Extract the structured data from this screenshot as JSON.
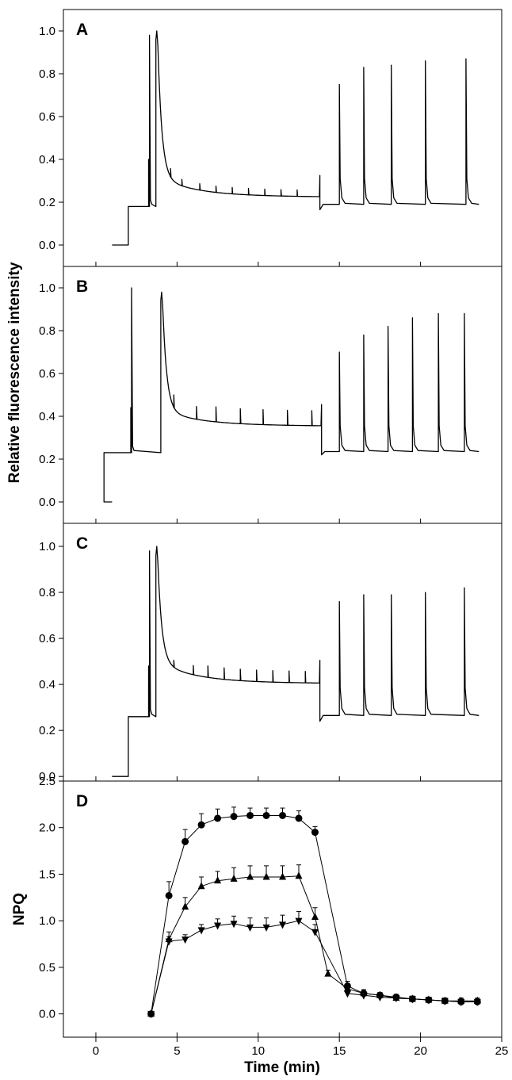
{
  "figure": {
    "ylabel_shared": "Relative fluorescence intensity",
    "xlabel": "Time (min)",
    "xlim": [
      -2,
      25
    ],
    "xticks": [
      0,
      5,
      10,
      15,
      20,
      25
    ],
    "xtick_labels": [
      "0",
      "5",
      "10",
      "15",
      "20",
      "25"
    ]
  },
  "chart_data": [
    {
      "type": "line",
      "panel": "A",
      "ylim": [
        -0.1,
        1.1
      ],
      "yticks": [
        0.0,
        0.2,
        0.4,
        0.6,
        0.8,
        1.0
      ],
      "ytick_labels": [
        "0.0",
        "0.2",
        "0.4",
        "0.6",
        "0.8",
        "1.0"
      ],
      "baseline": 0.0,
      "fo_on": 2.0,
      "fo": 0.18,
      "sp1": 3.3,
      "sp1_peak": 0.98,
      "sp1_small": 0.4,
      "al_on": 3.7,
      "al_peak": 1.0,
      "al_mid": 0.32,
      "steady": 0.23,
      "al_end": 0.225,
      "al_off": 13.8,
      "dark": 0.19,
      "dark_dip": 0.165,
      "sat_pulses_light": [
        4.6,
        5.3,
        6.4,
        7.4,
        8.4,
        9.4,
        10.4,
        11.4,
        12.4
      ],
      "sat_pulse_light_heights": [
        0.04,
        0.03,
        0.03,
        0.03,
        0.03,
        0.03,
        0.03,
        0.03,
        0.03
      ],
      "sat_pulses_dark": [
        15.0,
        16.5,
        18.2,
        20.3,
        22.8
      ],
      "sat_pulse_dark_peaks": [
        0.75,
        0.83,
        0.84,
        0.86,
        0.87
      ],
      "end_time": 23.6
    },
    {
      "type": "line",
      "panel": "B",
      "ylim": [
        -0.1,
        1.1
      ],
      "yticks": [
        0.0,
        0.2,
        0.4,
        0.6,
        0.8,
        1.0
      ],
      "ytick_labels": [
        "0.0",
        "0.2",
        "0.4",
        "0.6",
        "0.8",
        "1.0"
      ],
      "baseline": 0.0,
      "fo_on": 0.5,
      "fo": 0.23,
      "sp1": 2.2,
      "sp1_peak": 1.0,
      "sp1_small": 0.44,
      "al_on": 4.0,
      "al_peak": 0.98,
      "al_mid": 0.43,
      "steady": 0.36,
      "al_end": 0.355,
      "al_off": 13.9,
      "dark": 0.235,
      "dark_dip": 0.22,
      "sat_pulses_light": [
        4.8,
        6.2,
        7.4,
        8.9,
        10.3,
        11.8,
        13.3
      ],
      "sat_pulse_light_heights": [
        0.06,
        0.06,
        0.07,
        0.07,
        0.07,
        0.07,
        0.07
      ],
      "sat_pulses_dark": [
        15.0,
        16.5,
        18.0,
        19.5,
        21.1,
        22.7
      ],
      "sat_pulse_dark_peaks": [
        0.7,
        0.78,
        0.82,
        0.86,
        0.88,
        0.88
      ],
      "end_time": 23.6
    },
    {
      "type": "line",
      "panel": "C",
      "ylim": [
        -0.02,
        1.1
      ],
      "yticks": [
        0.0,
        0.2,
        0.4,
        0.6,
        0.8,
        1.0
      ],
      "ytick_labels": [
        "0.0",
        "0.2",
        "0.4",
        "0.6",
        "0.8",
        "1.0"
      ],
      "baseline": 0.0,
      "fo_on": 2.0,
      "fo": 0.26,
      "sp1": 3.3,
      "sp1_peak": 0.98,
      "sp1_small": 0.48,
      "al_on": 3.7,
      "al_peak": 1.0,
      "al_mid": 0.5,
      "steady": 0.41,
      "al_end": 0.405,
      "al_off": 13.8,
      "dark": 0.265,
      "dark_dip": 0.24,
      "sat_pulses_light": [
        4.8,
        6.0,
        6.9,
        7.9,
        8.9,
        9.9,
        10.9,
        11.9,
        12.9
      ],
      "sat_pulse_light_heights": [
        0.03,
        0.04,
        0.05,
        0.05,
        0.05,
        0.05,
        0.05,
        0.05,
        0.05
      ],
      "sat_pulses_dark": [
        15.0,
        16.5,
        18.2,
        20.3,
        22.7
      ],
      "sat_pulse_dark_peaks": [
        0.76,
        0.79,
        0.79,
        0.8,
        0.82
      ],
      "end_time": 23.6
    },
    {
      "type": "scatter",
      "panel": "D",
      "ylabel": "NPQ",
      "ylim": [
        -0.25,
        2.5
      ],
      "yticks": [
        0.0,
        0.5,
        1.0,
        1.5,
        2.0,
        2.5
      ],
      "ytick_labels": [
        "0.0",
        "0.5",
        "1.0",
        "1.5",
        "2.0",
        "2.5"
      ],
      "x": [
        3.4,
        4.5,
        5.5,
        6.5,
        7.5,
        8.5,
        9.5,
        10.5,
        11.5,
        12.5,
        13.5,
        14.3,
        15.5,
        16.5,
        17.5,
        18.5,
        19.5,
        20.5,
        21.5,
        22.5,
        23.5
      ],
      "series": [
        {
          "marker": "circle",
          "values": [
            0.0,
            1.27,
            1.85,
            2.03,
            2.1,
            2.12,
            2.13,
            2.13,
            2.13,
            2.1,
            1.95,
            null,
            0.3,
            0.22,
            0.2,
            0.18,
            0.16,
            0.15,
            0.14,
            0.13,
            0.13
          ],
          "errors": [
            0.02,
            0.15,
            0.13,
            0.12,
            0.1,
            0.1,
            0.08,
            0.08,
            0.08,
            0.08,
            0.06,
            null,
            0.05,
            0.04,
            0.03,
            0.03,
            0.03,
            0.03,
            0.03,
            0.03,
            0.03
          ]
        },
        {
          "marker": "triangle-up",
          "values": [
            0.0,
            0.8,
            1.15,
            1.37,
            1.43,
            1.45,
            1.47,
            1.47,
            1.47,
            1.48,
            1.04,
            0.43,
            0.27,
            0.22,
            0.2,
            0.17,
            0.16,
            0.15,
            0.14,
            0.14,
            0.14
          ],
          "errors": [
            0.02,
            0.08,
            0.1,
            0.1,
            0.1,
            0.12,
            0.12,
            0.12,
            0.12,
            0.12,
            0.1,
            0.04,
            0.04,
            0.04,
            0.03,
            0.03,
            0.03,
            0.03,
            0.03,
            0.03,
            0.03
          ]
        },
        {
          "marker": "triangle-down",
          "values": [
            0.0,
            0.78,
            0.8,
            0.9,
            0.95,
            0.97,
            0.93,
            0.93,
            0.96,
            1.0,
            0.88,
            null,
            0.22,
            0.2,
            0.18,
            0.17,
            0.16,
            0.15,
            0.14,
            0.13,
            0.13
          ],
          "errors": [
            0.02,
            0.05,
            0.05,
            0.06,
            0.07,
            0.08,
            0.1,
            0.1,
            0.1,
            0.1,
            0.08,
            null,
            0.04,
            0.03,
            0.03,
            0.03,
            0.03,
            0.03,
            0.03,
            0.03,
            0.03
          ]
        }
      ]
    }
  ]
}
